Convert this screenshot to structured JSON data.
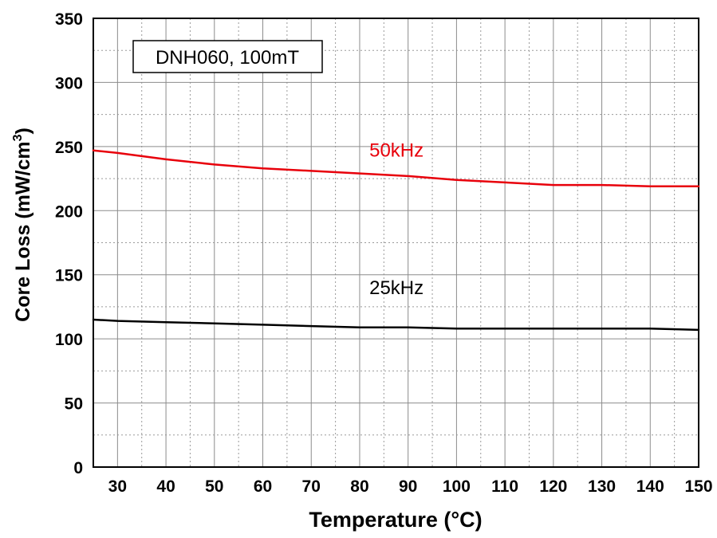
{
  "chart_data": {
    "type": "line",
    "title": "",
    "xlabel": "Temperature (°C)",
    "ylabel_main": "Core Loss (mW/cm",
    "ylabel_sup": "3",
    "ylabel_end": ")",
    "xlim": [
      25,
      150
    ],
    "ylim": [
      0,
      350
    ],
    "x_ticks": [
      30,
      40,
      50,
      60,
      70,
      80,
      90,
      100,
      110,
      120,
      130,
      140,
      150
    ],
    "y_ticks": [
      0,
      50,
      100,
      150,
      200,
      250,
      300,
      350
    ],
    "grid": true,
    "annotation": "DNH060, 100mT",
    "series": [
      {
        "name": "50kHz",
        "color": "#e8000b",
        "x": [
          25,
          30,
          40,
          50,
          60,
          70,
          80,
          90,
          100,
          110,
          120,
          130,
          140,
          150
        ],
        "values": [
          247,
          245,
          240,
          236,
          233,
          231,
          229,
          227,
          224,
          222,
          220,
          220,
          219,
          219
        ]
      },
      {
        "name": "25kHz",
        "color": "#000000",
        "x": [
          25,
          30,
          40,
          50,
          60,
          70,
          80,
          90,
          100,
          110,
          120,
          130,
          140,
          150
        ],
        "values": [
          115,
          114,
          113,
          112,
          111,
          110,
          109,
          109,
          108,
          108,
          108,
          108,
          108,
          107
        ]
      }
    ]
  }
}
